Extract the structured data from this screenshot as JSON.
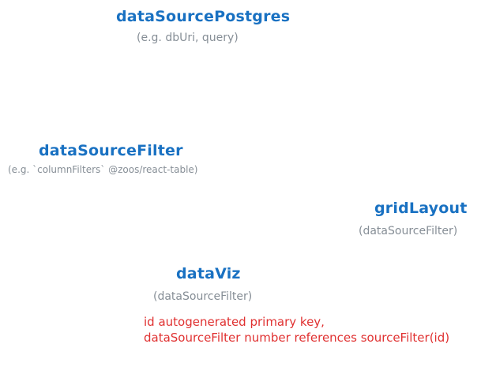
{
  "nodes": {
    "data_source_postgres": {
      "title": "dataSourcePostgres",
      "subtitle": "(e.g. dbUri, query)"
    },
    "data_source_filter": {
      "title": "dataSourceFilter",
      "subtitle": "(e.g. `columnFilters` @zoos/react-table)"
    },
    "grid_layout": {
      "title": "gridLayout",
      "subtitle": "(dataSourceFilter)"
    },
    "data_viz": {
      "title": "dataViz",
      "subtitle": "(dataSourceFilter)"
    }
  },
  "note": {
    "line1": "id autogenerated primary key,",
    "line2": "dataSourceFilter number references sourceFilter(id)"
  },
  "colors": {
    "title": "#1971c2",
    "subtitle": "#868e96",
    "note": "#e03131"
  }
}
